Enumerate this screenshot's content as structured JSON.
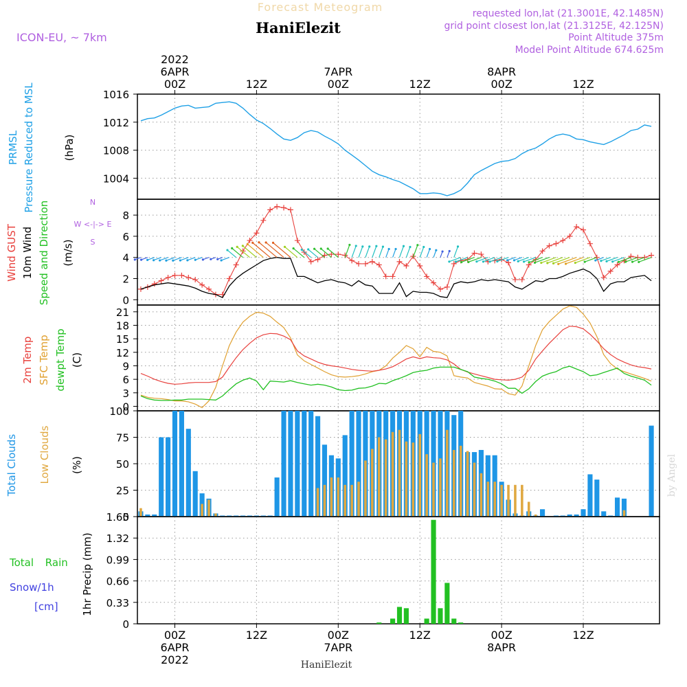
{
  "header": {
    "title": "Forecast Meteogram",
    "location": "HaniElezit",
    "model": "ICON-EU, ~ 7km",
    "requested": "requested lon,lat (21.3001E, 42.1485N)",
    "gridpoint": "grid point closest lon,lat (21.3125E, 42.125N)",
    "point_alt": "Point Altitude 375m",
    "model_alt": "Model Point Altitude 674.625m",
    "footer": "HaniElezit",
    "watermark": "by Angel"
  },
  "colors": {
    "pressure": "#1ea0e6",
    "gust": "#e8403c",
    "wind": "#000000",
    "temp": "#e8403c",
    "sfc": "#e0a030",
    "dewpt": "#22c022",
    "total_cloud": "#1e96e6",
    "low_cloud": "#e0a840",
    "rain": "#22c022",
    "snow": "#4040e0",
    "label_purple": "#b060e0"
  },
  "time_axis": {
    "top_date_labels": [
      {
        "h": 0,
        "lines": [
          "2022",
          "6APR",
          "00Z"
        ]
      },
      {
        "h": 12,
        "lines": [
          "12Z"
        ]
      },
      {
        "h": 24,
        "lines": [
          "7APR",
          "00Z"
        ]
      },
      {
        "h": 36,
        "lines": [
          "12Z"
        ]
      },
      {
        "h": 48,
        "lines": [
          "8APR",
          "00Z"
        ]
      },
      {
        "h": 60,
        "lines": [
          "12Z"
        ]
      }
    ],
    "bottom_date_labels": [
      {
        "h": 0,
        "lines": [
          "00Z",
          "6APR",
          "2022"
        ]
      },
      {
        "h": 12,
        "lines": [
          "12Z"
        ]
      },
      {
        "h": 24,
        "lines": [
          "00Z",
          "7APR"
        ]
      },
      {
        "h": 36,
        "lines": [
          "12Z"
        ]
      },
      {
        "h": 48,
        "lines": [
          "00Z",
          "8APR"
        ]
      },
      {
        "h": 60,
        "lines": [
          "12Z"
        ]
      }
    ]
  },
  "panel_labels": {
    "pressure": [
      "PRMSL",
      "Pressure Reduced to MSL",
      "(hPa)"
    ],
    "wind": [
      "Wind GUST",
      "10m Wind",
      "Speed and Direction",
      "(m/s)"
    ],
    "compass": [
      "N",
      "W <-|-> E",
      "S"
    ],
    "temp": [
      "2m Temp",
      "SFC Temp",
      "dewpt Temp",
      "(C)"
    ],
    "clouds": [
      "Total Clouds",
      "Low Clouds",
      "(%)"
    ],
    "precip": [
      "Total Rain",
      "Snow/1h",
      "[cm]",
      "1hr Precip (mm)"
    ]
  },
  "chart_data": [
    {
      "type": "line",
      "name": "PRMSL",
      "ylabel": "(hPa)",
      "yticks": [
        "1016",
        "1012",
        "1008",
        "1004"
      ],
      "ylim": [
        1001,
        1016
      ],
      "x": [
        -5,
        -4,
        -3,
        -2,
        -1,
        0,
        1,
        2,
        3,
        4,
        5,
        6,
        7,
        8,
        9,
        10,
        11,
        12,
        13,
        14,
        15,
        16,
        17,
        18,
        19,
        20,
        21,
        22,
        23,
        24,
        25,
        26,
        27,
        28,
        29,
        30,
        31,
        32,
        33,
        34,
        35,
        36,
        37,
        38,
        39,
        40,
        41,
        42,
        43,
        44,
        45,
        46,
        47,
        48,
        49,
        50,
        51,
        52,
        53,
        54,
        55,
        56,
        57,
        58,
        59,
        60,
        61,
        62,
        63,
        64,
        65,
        66,
        67,
        68,
        69,
        70
      ],
      "series": [
        {
          "values": [
            1012.2,
            1012.5,
            1012.6,
            1013.0,
            1013.5,
            1014.0,
            1014.3,
            1014.4,
            1014.0,
            1014.1,
            1014.2,
            1014.7,
            1014.8,
            1014.9,
            1014.7,
            1014.0,
            1013.1,
            1012.3,
            1011.8,
            1011.1,
            1010.3,
            1009.6,
            1009.4,
            1009.8,
            1010.5,
            1010.8,
            1010.6,
            1010.0,
            1009.5,
            1008.9,
            1008.0,
            1007.3,
            1006.6,
            1005.8,
            1005.0,
            1004.5,
            1004.2,
            1003.8,
            1003.5,
            1003.0,
            1002.5,
            1001.8,
            1001.8,
            1001.9,
            1001.8,
            1001.5,
            1001.8,
            1002.3,
            1003.3,
            1004.5,
            1005.1,
            1005.6,
            1006.1,
            1006.4,
            1006.5,
            1006.8,
            1007.5,
            1008.0,
            1008.3,
            1008.9,
            1009.6,
            1010.1,
            1010.3,
            1010.1,
            1009.6,
            1009.5,
            1009.2,
            1009.0,
            1008.8,
            1009.2,
            1009.7,
            1010.2,
            1010.8,
            1011.0,
            1011.6,
            1011.4
          ]
        }
      ]
    },
    {
      "type": "line",
      "name": "Wind",
      "ylabel": "(m/s)",
      "yticks": [
        "8",
        "6",
        "4",
        "2",
        "0"
      ],
      "ylim": [
        -0.5,
        9.5
      ],
      "x": [
        -5,
        -4,
        -3,
        -2,
        -1,
        0,
        1,
        2,
        3,
        4,
        5,
        6,
        7,
        8,
        9,
        10,
        11,
        12,
        13,
        14,
        15,
        16,
        17,
        18,
        19,
        20,
        21,
        22,
        23,
        24,
        25,
        26,
        27,
        28,
        29,
        30,
        31,
        32,
        33,
        34,
        35,
        36,
        37,
        38,
        39,
        40,
        41,
        42,
        43,
        44,
        45,
        46,
        47,
        48,
        49,
        50,
        51,
        52,
        53,
        54,
        55,
        56,
        57,
        58,
        59,
        60,
        61,
        62,
        63,
        64,
        65,
        66,
        67,
        68,
        69,
        70
      ],
      "series": [
        {
          "name": "Wind GUST",
          "values": [
            1.0,
            1.2,
            1.5,
            1.8,
            2.1,
            2.3,
            2.3,
            2.1,
            1.9,
            1.4,
            1.0,
            0.5,
            0.5,
            2.0,
            3.3,
            4.6,
            5.6,
            6.3,
            7.5,
            8.5,
            8.8,
            8.7,
            8.5,
            5.6,
            4.5,
            3.6,
            3.8,
            4.2,
            4.3,
            4.3,
            4.2,
            3.7,
            3.4,
            3.4,
            3.6,
            3.3,
            2.2,
            2.2,
            3.6,
            3.2,
            4.1,
            3.2,
            2.2,
            1.6,
            1.0,
            1.2,
            3.4,
            3.7,
            3.8,
            4.4,
            4.3,
            3.6,
            3.7,
            3.8,
            3.5,
            1.9,
            1.9,
            3.3,
            3.8,
            4.6,
            5.1,
            5.3,
            5.6,
            6.0,
            6.9,
            6.6,
            5.3,
            4.0,
            2.1,
            2.7,
            3.3,
            3.7,
            4.1,
            4.0,
            4.0,
            4.2
          ]
        },
        {
          "name": "10m Wind",
          "values": [
            1.0,
            1.2,
            1.4,
            1.5,
            1.6,
            1.5,
            1.4,
            1.3,
            1.1,
            0.8,
            0.6,
            0.5,
            0.2,
            1.3,
            2.0,
            2.5,
            2.9,
            3.3,
            3.7,
            3.9,
            4.0,
            3.9,
            3.9,
            2.2,
            2.2,
            1.9,
            1.6,
            1.8,
            1.9,
            1.7,
            1.6,
            1.3,
            1.8,
            1.4,
            1.3,
            0.6,
            0.6,
            0.6,
            1.6,
            0.3,
            0.8,
            0.7,
            0.7,
            0.6,
            0.3,
            0.2,
            1.5,
            1.7,
            1.6,
            1.7,
            1.9,
            1.8,
            1.9,
            1.8,
            1.7,
            1.2,
            1.0,
            1.4,
            1.8,
            1.7,
            2.0,
            2.0,
            2.2,
            2.5,
            2.7,
            2.9,
            2.6,
            2.0,
            0.8,
            1.5,
            1.7,
            1.7,
            2.1,
            2.2,
            2.3,
            1.8
          ]
        }
      ]
    },
    {
      "type": "line",
      "name": "Temperature",
      "ylabel": "(C)",
      "yticks": [
        "21",
        "18",
        "15",
        "12",
        "9",
        "6",
        "3",
        "0"
      ],
      "ylim": [
        -1,
        22.5
      ],
      "x": [
        -5,
        -4,
        -3,
        -2,
        -1,
        0,
        1,
        2,
        3,
        4,
        5,
        6,
        7,
        8,
        9,
        10,
        11,
        12,
        13,
        14,
        15,
        16,
        17,
        18,
        19,
        20,
        21,
        22,
        23,
        24,
        25,
        26,
        27,
        28,
        29,
        30,
        31,
        32,
        33,
        34,
        35,
        36,
        37,
        38,
        39,
        40,
        41,
        42,
        43,
        44,
        45,
        46,
        47,
        48,
        49,
        50,
        51,
        52,
        53,
        54,
        55,
        56,
        57,
        58,
        59,
        60,
        61,
        62,
        63,
        64,
        65,
        66,
        67,
        68,
        69,
        70
      ],
      "series": [
        {
          "name": "2m Temp",
          "values": [
            7.3,
            6.7,
            6.0,
            5.5,
            5.1,
            4.9,
            5.0,
            5.2,
            5.3,
            5.3,
            5.3,
            5.5,
            6.5,
            8.7,
            10.8,
            12.6,
            14.0,
            15.2,
            15.9,
            16.2,
            16.1,
            15.6,
            14.8,
            12.3,
            11.2,
            10.5,
            9.8,
            9.3,
            9.0,
            8.8,
            8.5,
            8.2,
            8.0,
            7.9,
            7.8,
            8.0,
            8.3,
            8.8,
            9.6,
            10.5,
            11.0,
            10.6,
            11.0,
            10.8,
            10.7,
            10.3,
            9.4,
            8.2,
            7.6,
            7.2,
            6.8,
            6.4,
            6.0,
            5.9,
            5.8,
            6.0,
            6.5,
            8.0,
            10.5,
            12.3,
            14.0,
            15.5,
            17.0,
            17.8,
            17.7,
            17.2,
            16.0,
            14.5,
            12.8,
            11.5,
            10.5,
            9.8,
            9.2,
            8.8,
            8.6,
            8.3
          ]
        },
        {
          "name": "SFC Temp",
          "values": [
            2.5,
            2.0,
            1.8,
            1.7,
            1.5,
            1.2,
            1.2,
            1.0,
            0.5,
            -0.3,
            1.2,
            4.2,
            9.0,
            13.5,
            16.5,
            18.7,
            20.0,
            20.9,
            20.7,
            20.0,
            18.7,
            17.5,
            15.2,
            11.4,
            10.1,
            9.3,
            8.5,
            7.7,
            7.0,
            6.6,
            6.5,
            6.6,
            6.8,
            7.2,
            7.7,
            8.0,
            9.0,
            10.7,
            12.0,
            13.5,
            12.8,
            11.0,
            13.1,
            12.2,
            12.0,
            11.2,
            6.8,
            6.5,
            6.3,
            5.3,
            4.9,
            4.5,
            3.9,
            3.8,
            2.8,
            2.5,
            4.5,
            9.0,
            13.5,
            17.0,
            18.8,
            20.2,
            21.6,
            22.3,
            22.0,
            20.5,
            18.5,
            15.5,
            11.5,
            9.5,
            8.3,
            7.7,
            7.2,
            6.7,
            6.2,
            5.6
          ]
        },
        {
          "name": "dewpt Temp",
          "values": [
            2.3,
            1.7,
            1.4,
            1.3,
            1.3,
            1.4,
            1.4,
            1.6,
            1.6,
            1.6,
            1.5,
            1.4,
            2.3,
            3.7,
            5.0,
            5.8,
            6.3,
            5.6,
            3.7,
            5.6,
            5.5,
            5.4,
            5.7,
            5.3,
            5.0,
            4.7,
            4.9,
            4.7,
            4.3,
            3.7,
            3.5,
            3.6,
            4.0,
            4.1,
            4.5,
            5.1,
            5.0,
            5.7,
            6.2,
            6.8,
            7.5,
            7.8,
            8.0,
            8.5,
            8.7,
            8.7,
            8.7,
            8.2,
            7.7,
            6.5,
            6.2,
            6.0,
            5.6,
            5.0,
            4.0,
            4.0,
            2.9,
            3.9,
            5.5,
            6.7,
            7.3,
            7.7,
            8.5,
            8.9,
            8.3,
            7.7,
            6.8,
            7.0,
            7.5,
            8.0,
            8.5,
            7.3,
            6.7,
            6.3,
            5.8,
            4.7
          ]
        }
      ]
    },
    {
      "type": "bar",
      "name": "Clouds",
      "ylabel": "(%)",
      "yticks": [
        "100",
        "75",
        "50",
        "25",
        "0"
      ],
      "ylim": [
        0,
        100
      ],
      "x": [
        -5,
        -4,
        -3,
        -2,
        -1,
        0,
        1,
        2,
        3,
        4,
        5,
        6,
        7,
        8,
        9,
        10,
        11,
        12,
        13,
        14,
        15,
        16,
        17,
        18,
        19,
        20,
        21,
        22,
        23,
        24,
        25,
        26,
        27,
        28,
        29,
        30,
        31,
        32,
        33,
        34,
        35,
        36,
        37,
        38,
        39,
        40,
        41,
        42,
        43,
        44,
        45,
        46,
        47,
        48,
        49,
        50,
        51,
        52,
        53,
        54,
        55,
        56,
        57,
        58,
        59,
        60,
        61,
        62,
        63,
        64,
        65,
        66,
        67,
        68,
        69,
        70
      ],
      "series": [
        {
          "name": "Total Clouds",
          "values": [
            5,
            2,
            2,
            75,
            75,
            100,
            100,
            83,
            43,
            22,
            17,
            3,
            1,
            1,
            1,
            1,
            1,
            1,
            1,
            1,
            37,
            100,
            100,
            100,
            100,
            100,
            95,
            68,
            58,
            55,
            77,
            100,
            100,
            100,
            100,
            100,
            100,
            100,
            100,
            100,
            100,
            100,
            100,
            100,
            100,
            100,
            96,
            100,
            61,
            61,
            63,
            58,
            58,
            33,
            16,
            3,
            1,
            5,
            1,
            7,
            0,
            1,
            1,
            2,
            2,
            7,
            40,
            35,
            5,
            1,
            18,
            17,
            0,
            0,
            0,
            86
          ]
        },
        {
          "name": "Low Clouds",
          "values": [
            8,
            0,
            0,
            0,
            0,
            0,
            0,
            0,
            0,
            12,
            16,
            3,
            0,
            0,
            0,
            0,
            0,
            0,
            0,
            0,
            0,
            0,
            0,
            0,
            0,
            0,
            27,
            30,
            37,
            37,
            30,
            30,
            33,
            53,
            64,
            75,
            73,
            80,
            82,
            71,
            70,
            78,
            59,
            51,
            55,
            82,
            63,
            67,
            62,
            51,
            41,
            33,
            33,
            30,
            30,
            30,
            30,
            14,
            2,
            0,
            0,
            0,
            0,
            0,
            0,
            0,
            0,
            0,
            0,
            0,
            0,
            6,
            0,
            0,
            0,
            0
          ]
        }
      ]
    },
    {
      "type": "bar",
      "name": "1hr Precip",
      "ylabel": "1hr Precip (mm)",
      "yticks": [
        "1.65",
        "1.32",
        "0.99",
        "0.66",
        "0.33",
        "0"
      ],
      "ylim": [
        0,
        1.65
      ],
      "x": [
        30,
        31,
        32,
        33,
        34,
        35,
        36,
        37,
        38,
        39,
        40,
        41,
        42
      ],
      "series": [
        {
          "name": "Total Rain",
          "values": [
            0.02,
            0,
            0.08,
            0.26,
            0.24,
            0,
            0,
            0.08,
            1.6,
            0.24,
            0.63,
            0.08,
            0.02
          ]
        }
      ]
    }
  ]
}
